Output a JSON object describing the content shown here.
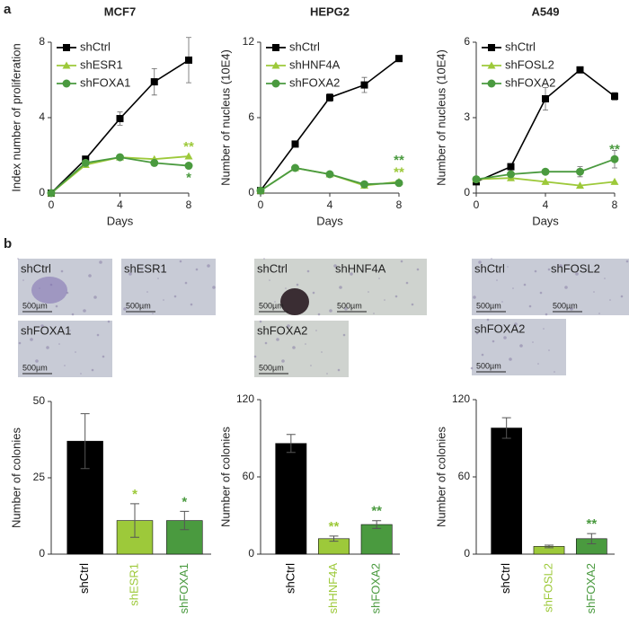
{
  "panel_labels": [
    "a",
    "b"
  ],
  "chart_data": [
    {
      "type": "line",
      "title": "MCF7",
      "x_label": "Days",
      "y_label": "Index number of proliferation",
      "x": [
        0,
        2,
        4,
        6,
        8
      ],
      "xlim": [
        0,
        8
      ],
      "xticks": [
        0,
        4,
        8
      ],
      "ylim": [
        0,
        8
      ],
      "yticks": [
        0,
        4,
        8
      ],
      "series": [
        {
          "name": "shCtrl",
          "color": "#000000",
          "marker": "square",
          "values": [
            0,
            1.8,
            3.95,
            5.9,
            7.05
          ],
          "errors": [
            0,
            0.1,
            0.35,
            0.7,
            1.2
          ]
        },
        {
          "name": "shESR1",
          "color": "#9dc93a",
          "marker": "triangle",
          "values": [
            0,
            1.5,
            1.9,
            1.8,
            1.95
          ]
        },
        {
          "name": "shFOXA1",
          "color": "#4a9a3f",
          "marker": "circle",
          "values": [
            0,
            1.6,
            1.9,
            1.6,
            1.45
          ]
        }
      ],
      "annotations": [
        {
          "text": "**",
          "series": 1,
          "position": "above"
        },
        {
          "text": "*",
          "series": 2,
          "position": "below"
        }
      ]
    },
    {
      "type": "line",
      "title": "HEPG2",
      "x_label": "Days",
      "y_label": "Number of nucleus (10E4)",
      "x": [
        0,
        2,
        4,
        6,
        8
      ],
      "xlim": [
        0,
        8
      ],
      "xticks": [
        0,
        4,
        8
      ],
      "ylim": [
        0,
        12
      ],
      "yticks": [
        0,
        6,
        12
      ],
      "series": [
        {
          "name": "shCtrl",
          "color": "#000000",
          "marker": "square",
          "values": [
            0.2,
            3.9,
            7.6,
            8.6,
            10.7
          ],
          "errors": [
            0,
            0.2,
            0.3,
            0.6,
            0.2
          ]
        },
        {
          "name": "shHNF4A",
          "color": "#9dc93a",
          "marker": "triangle",
          "values": [
            0.2,
            2.0,
            1.5,
            0.6,
            0.9
          ]
        },
        {
          "name": "shFOXA2",
          "color": "#4a9a3f",
          "marker": "circle",
          "values": [
            0.2,
            2.0,
            1.5,
            0.7,
            0.8
          ]
        }
      ],
      "annotations": [
        {
          "text": "**",
          "series": 1,
          "position": "above"
        },
        {
          "text": "**",
          "series": 2,
          "position": "above"
        }
      ]
    },
    {
      "type": "line",
      "title": "A549",
      "x_label": "Days",
      "y_label": "Number of nucleus (10E4)",
      "x": [
        0,
        2,
        4,
        6,
        8
      ],
      "xlim": [
        0,
        8
      ],
      "xticks": [
        0,
        4,
        8
      ],
      "ylim": [
        0,
        6
      ],
      "yticks": [
        0,
        3,
        6
      ],
      "series": [
        {
          "name": "shCtrl",
          "color": "#000000",
          "marker": "square",
          "values": [
            0.45,
            1.05,
            3.75,
            4.9,
            3.85
          ],
          "errors": [
            0,
            0.1,
            0.45,
            0.1,
            0.15
          ]
        },
        {
          "name": "shFOSL2",
          "color": "#9dc93a",
          "marker": "triangle",
          "values": [
            0.55,
            0.6,
            0.45,
            0.3,
            0.45
          ]
        },
        {
          "name": "shFOXA2",
          "color": "#4a9a3f",
          "marker": "circle",
          "values": [
            0.55,
            0.75,
            0.85,
            0.85,
            1.35
          ],
          "errors": [
            0,
            0.05,
            0.05,
            0.2,
            0.35
          ]
        }
      ],
      "annotations": [
        {
          "text": "**",
          "series": 2,
          "position": "above"
        }
      ]
    },
    {
      "type": "bar",
      "y_label": "Number of colonies",
      "categories": [
        "shCtrl",
        "shESR1",
        "shFOXA1"
      ],
      "values": [
        37,
        11,
        11
      ],
      "errors": [
        9,
        5.5,
        3
      ],
      "colors": [
        "#000000",
        "#9dc93a",
        "#4a9a3f"
      ],
      "ylim": [
        0,
        50
      ],
      "yticks": [
        0,
        25,
        50
      ],
      "annotations": [
        {
          "text": "*",
          "bar": 1
        },
        {
          "text": "*",
          "bar": 2
        }
      ]
    },
    {
      "type": "bar",
      "y_label": "Number of colonies",
      "categories": [
        "shCtrl",
        "shHNF4A",
        "shFOXA2"
      ],
      "values": [
        86,
        12,
        23
      ],
      "errors": [
        7,
        2,
        3
      ],
      "colors": [
        "#000000",
        "#9dc93a",
        "#4a9a3f"
      ],
      "ylim": [
        0,
        120
      ],
      "yticks": [
        0,
        60,
        120
      ],
      "annotations": [
        {
          "text": "**",
          "bar": 1
        },
        {
          "text": "**",
          "bar": 2
        }
      ]
    },
    {
      "type": "bar",
      "y_label": "Number of colonies",
      "categories": [
        "shCtrl",
        "shFOSL2",
        "shFOXA2"
      ],
      "values": [
        98,
        6,
        12
      ],
      "errors": [
        8,
        1,
        4
      ],
      "colors": [
        "#000000",
        "#9dc93a",
        "#4a9a3f"
      ],
      "ylim": [
        0,
        120
      ],
      "yticks": [
        0,
        60,
        120
      ],
      "annotations": [
        {
          "text": "**",
          "bar": 2
        }
      ]
    }
  ],
  "micrographs": [
    [
      {
        "label": "shCtrl",
        "scale": "500µm"
      },
      {
        "label": "shESR1",
        "scale": "500µm"
      },
      {
        "label": "shFOXA1",
        "scale": "500µm"
      }
    ],
    [
      {
        "label": "shCtrl",
        "scale": "500µm"
      },
      {
        "label": "shHNF4A",
        "scale": "500µm"
      },
      {
        "label": "shFOXA2",
        "scale": "500µm"
      }
    ],
    [
      {
        "label": "shCtrl",
        "scale": "500µm"
      },
      {
        "label": "shFOSL2",
        "scale": "500µm"
      },
      {
        "label": "shFOXA2",
        "scale": "500µm"
      }
    ]
  ]
}
